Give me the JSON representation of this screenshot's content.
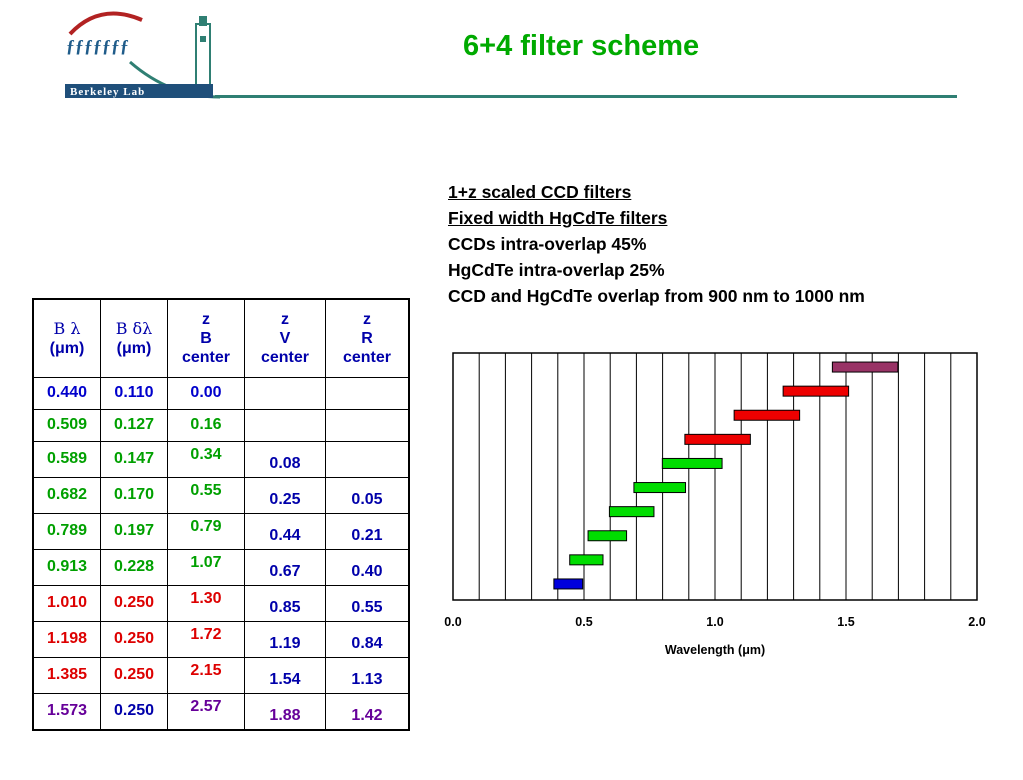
{
  "header": {
    "logo_text": "Berkeley Lab",
    "title": "6+4 filter scheme"
  },
  "notes": [
    {
      "text": "1+z scaled CCD filters",
      "underline": true
    },
    {
      "text": "Fixed width HgCdTe filters",
      "underline": true
    },
    {
      "text": "CCDs intra-overlap 45%",
      "underline": false
    },
    {
      "text": "HgCdTe intra-overlap 25%",
      "underline": false
    },
    {
      "text": "CCD and HgCdTe overlap from 900 nm to 1000 nm",
      "underline": false
    }
  ],
  "table": {
    "headers": [
      {
        "sym": "B λ",
        "unit": "(μm)"
      },
      {
        "sym": "B δλ",
        "unit": "(μm)"
      },
      {
        "lines": [
          "z",
          "B",
          "center"
        ]
      },
      {
        "lines": [
          "z",
          "V",
          "center"
        ]
      },
      {
        "lines": [
          "z",
          "R",
          "center"
        ]
      }
    ],
    "rows": [
      {
        "cells": [
          "0.440",
          "0.110",
          "0.00",
          "",
          ""
        ],
        "color": "#0000cc"
      },
      {
        "cells": [
          "0.509",
          "0.127",
          "0.16",
          "",
          ""
        ],
        "color": "#00a000"
      },
      {
        "cells": [
          "0.589",
          "0.147",
          "0.34",
          "0.08",
          ""
        ],
        "color": "#00a000"
      },
      {
        "cells": [
          "0.682",
          "0.170",
          "0.55",
          "0.25",
          "0.05"
        ],
        "color": "#00a000"
      },
      {
        "cells": [
          "0.789",
          "0.197",
          "0.79",
          "0.44",
          "0.21"
        ],
        "color": "#00a000"
      },
      {
        "cells": [
          "0.913",
          "0.228",
          "1.07",
          "0.67",
          "0.40"
        ],
        "color": "#00a000"
      },
      {
        "cells": [
          "1.010",
          "0.250",
          "1.30",
          "0.85",
          "0.55"
        ],
        "color": "#dd0000"
      },
      {
        "cells": [
          "1.198",
          "0.250",
          "1.72",
          "1.19",
          "0.84"
        ],
        "color": "#dd0000"
      },
      {
        "cells": [
          "1.385",
          "0.250",
          "2.15",
          "1.54",
          "1.13"
        ],
        "color": "#dd0000"
      },
      {
        "cells": [
          "1.573",
          "0.250",
          "2.57",
          "1.88",
          "1.42"
        ],
        "color": "#660099"
      }
    ],
    "zvr_color": "#0000aa"
  },
  "chart_data": {
    "type": "bar",
    "orientation": "horizontal-range",
    "xlabel": "Wavelength (μm)",
    "xlim": [
      0.0,
      2.0
    ],
    "xticks": [
      "0.0",
      "0.5",
      "1.0",
      "1.5",
      "2.0"
    ],
    "grid": true,
    "filters": [
      {
        "center": 0.44,
        "width": 0.11,
        "color": "#0000dd"
      },
      {
        "center": 0.509,
        "width": 0.127,
        "color": "#00dd00"
      },
      {
        "center": 0.589,
        "width": 0.147,
        "color": "#00dd00"
      },
      {
        "center": 0.682,
        "width": 0.17,
        "color": "#00dd00"
      },
      {
        "center": 0.789,
        "width": 0.197,
        "color": "#00dd00"
      },
      {
        "center": 0.913,
        "width": 0.228,
        "color": "#00dd00"
      },
      {
        "center": 1.01,
        "width": 0.25,
        "color": "#ee0000"
      },
      {
        "center": 1.198,
        "width": 0.25,
        "color": "#ee0000"
      },
      {
        "center": 1.385,
        "width": 0.25,
        "color": "#ee0000"
      },
      {
        "center": 1.573,
        "width": 0.25,
        "color": "#993366"
      }
    ]
  }
}
